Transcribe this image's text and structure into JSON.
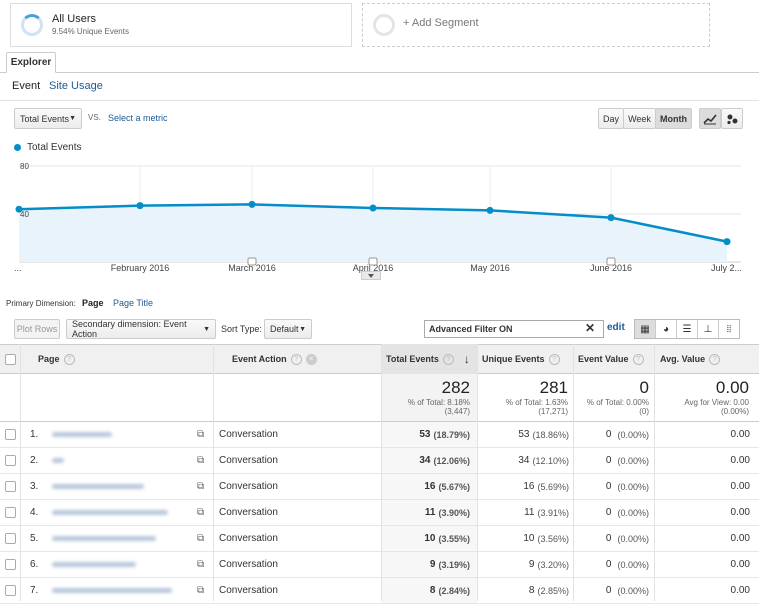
{
  "segments": {
    "active": {
      "title": "All Users",
      "subtitle": "9.54% Unique Events"
    },
    "add_label": "+ Add Segment"
  },
  "explorer_tab": "Explorer",
  "subtabs": [
    "Event",
    "Site Usage"
  ],
  "controls": {
    "metric_select": "Total Events",
    "vs_label": "VS.",
    "select_metric": "Select a metric",
    "granularity": [
      "Day",
      "Week",
      "Month"
    ],
    "active_granularity": "Month"
  },
  "chart_data": {
    "type": "line",
    "series": [
      {
        "name": "Total Events",
        "color": "#058dc7",
        "values": [
          44,
          47,
          48,
          45,
          43,
          37,
          17
        ]
      }
    ],
    "x": [
      "...",
      "February 2016",
      "March 2016",
      "April 2016",
      "May 2016",
      "June 2016",
      "July 2..."
    ],
    "y_ticks": [
      80,
      40
    ],
    "ylim": [
      0,
      80
    ],
    "grid": true
  },
  "dimension": {
    "label": "Primary Dimension:",
    "active": "Page",
    "alt": "Page Title"
  },
  "toolbar": {
    "plot_rows": "Plot Rows",
    "secondary": "Secondary dimension: Event Action",
    "sort_label": "Sort Type:",
    "sort_value": "Default",
    "filter": "Advanced Filter ON",
    "edit": "edit"
  },
  "table": {
    "headers": {
      "page": "Page",
      "event_action": "Event Action",
      "total_events": "Total Events",
      "unique_events": "Unique Events",
      "event_value": "Event Value",
      "avg_value": "Avg. Value"
    },
    "totals": {
      "total_events": "282",
      "total_events_sub1": "% of Total: 8.18%",
      "total_events_sub2": "(3,447)",
      "unique_events": "281",
      "unique_events_sub1": "% of Total: 1.63%",
      "unique_events_sub2": "(17,271)",
      "event_value": "0",
      "event_value_sub1": "% of Total: 0.00%",
      "event_value_sub2": "(0)",
      "avg_value": "0.00",
      "avg_value_sub1": "Avg for View: 0.00",
      "avg_value_sub2": "(0.00%)"
    },
    "rows": [
      {
        "num": "1.",
        "action": "Conversation",
        "total": "53",
        "total_pct": "(18.79%)",
        "unique": "53",
        "unique_pct": "(18.86%)",
        "value": "0",
        "value_pct": "(0.00%)",
        "avg": "0.00"
      },
      {
        "num": "2.",
        "action": "Conversation",
        "total": "34",
        "total_pct": "(12.06%)",
        "unique": "34",
        "unique_pct": "(12.10%)",
        "value": "0",
        "value_pct": "(0.00%)",
        "avg": "0.00"
      },
      {
        "num": "3.",
        "action": "Conversation",
        "total": "16",
        "total_pct": "(5.67%)",
        "unique": "16",
        "unique_pct": "(5.69%)",
        "value": "0",
        "value_pct": "(0.00%)",
        "avg": "0.00"
      },
      {
        "num": "4.",
        "action": "Conversation",
        "total": "11",
        "total_pct": "(3.90%)",
        "unique": "11",
        "unique_pct": "(3.91%)",
        "value": "0",
        "value_pct": "(0.00%)",
        "avg": "0.00"
      },
      {
        "num": "5.",
        "action": "Conversation",
        "total": "10",
        "total_pct": "(3.55%)",
        "unique": "10",
        "unique_pct": "(3.56%)",
        "value": "0",
        "value_pct": "(0.00%)",
        "avg": "0.00"
      },
      {
        "num": "6.",
        "action": "Conversation",
        "total": "9",
        "total_pct": "(3.19%)",
        "unique": "9",
        "unique_pct": "(3.20%)",
        "value": "0",
        "value_pct": "(0.00%)",
        "avg": "0.00"
      },
      {
        "num": "7.",
        "action": "Conversation",
        "total": "8",
        "total_pct": "(2.84%)",
        "unique": "8",
        "unique_pct": "(2.85%)",
        "value": "0",
        "value_pct": "(0.00%)",
        "avg": "0.00"
      }
    ]
  }
}
